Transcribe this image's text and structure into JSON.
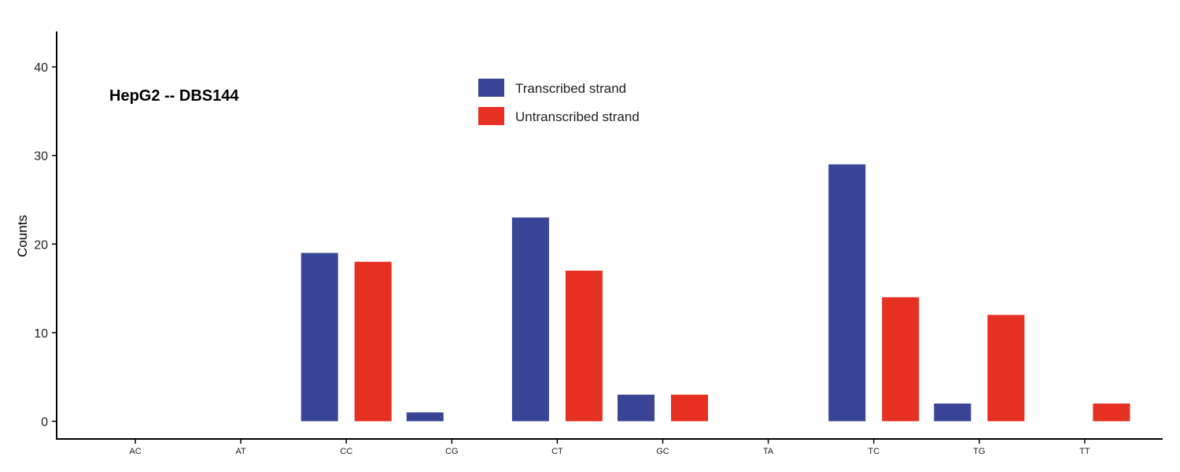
{
  "chart_data": {
    "type": "bar",
    "title": "HepG2 -- DBS144",
    "xlabel": "",
    "ylabel": "Counts",
    "categories": [
      "AC",
      "AT",
      "CC",
      "CG",
      "CT",
      "GC",
      "TA",
      "TC",
      "TG",
      "TT"
    ],
    "series": [
      {
        "name": "Transcribed strand",
        "color": "#3a4597",
        "values": [
          0,
          0,
          19,
          1,
          23,
          3,
          0,
          29,
          2,
          0
        ]
      },
      {
        "name": "Untranscribed strand",
        "color": "#e63022",
        "values": [
          0,
          0,
          18,
          0,
          17,
          3,
          0,
          14,
          12,
          2
        ]
      }
    ],
    "yticks": [
      0,
      10,
      20,
      30,
      40
    ],
    "ylim": [
      -2,
      44
    ],
    "grid": false,
    "legend_position": "top-center"
  }
}
